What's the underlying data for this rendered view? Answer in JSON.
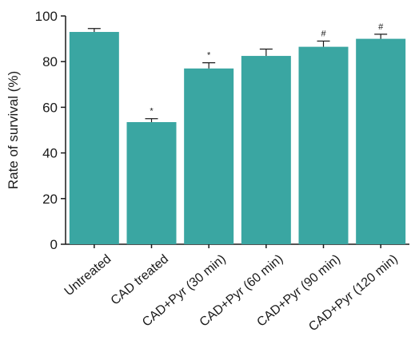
{
  "chart_data": {
    "type": "bar",
    "title": "",
    "xlabel": "",
    "ylabel": "Rate of survival (%)",
    "ylim": [
      0,
      100
    ],
    "yticks": [
      0,
      20,
      40,
      60,
      80,
      100
    ],
    "grid": false,
    "bar_color": "#3aa6a2",
    "categories": [
      "Untreated",
      "CAD treated",
      "CAD+Pyr (30 min)",
      "CAD+Pyr (60 min)",
      "CAD+Pyr (90 min)",
      "CAD+Pyr (120 min)"
    ],
    "values": [
      93,
      53.5,
      77,
      82.5,
      86.5,
      90
    ],
    "errors": [
      1.5,
      1.5,
      2.5,
      3,
      2.5,
      2
    ],
    "annotations": [
      "",
      "*",
      "*",
      "",
      "#",
      "#"
    ]
  }
}
